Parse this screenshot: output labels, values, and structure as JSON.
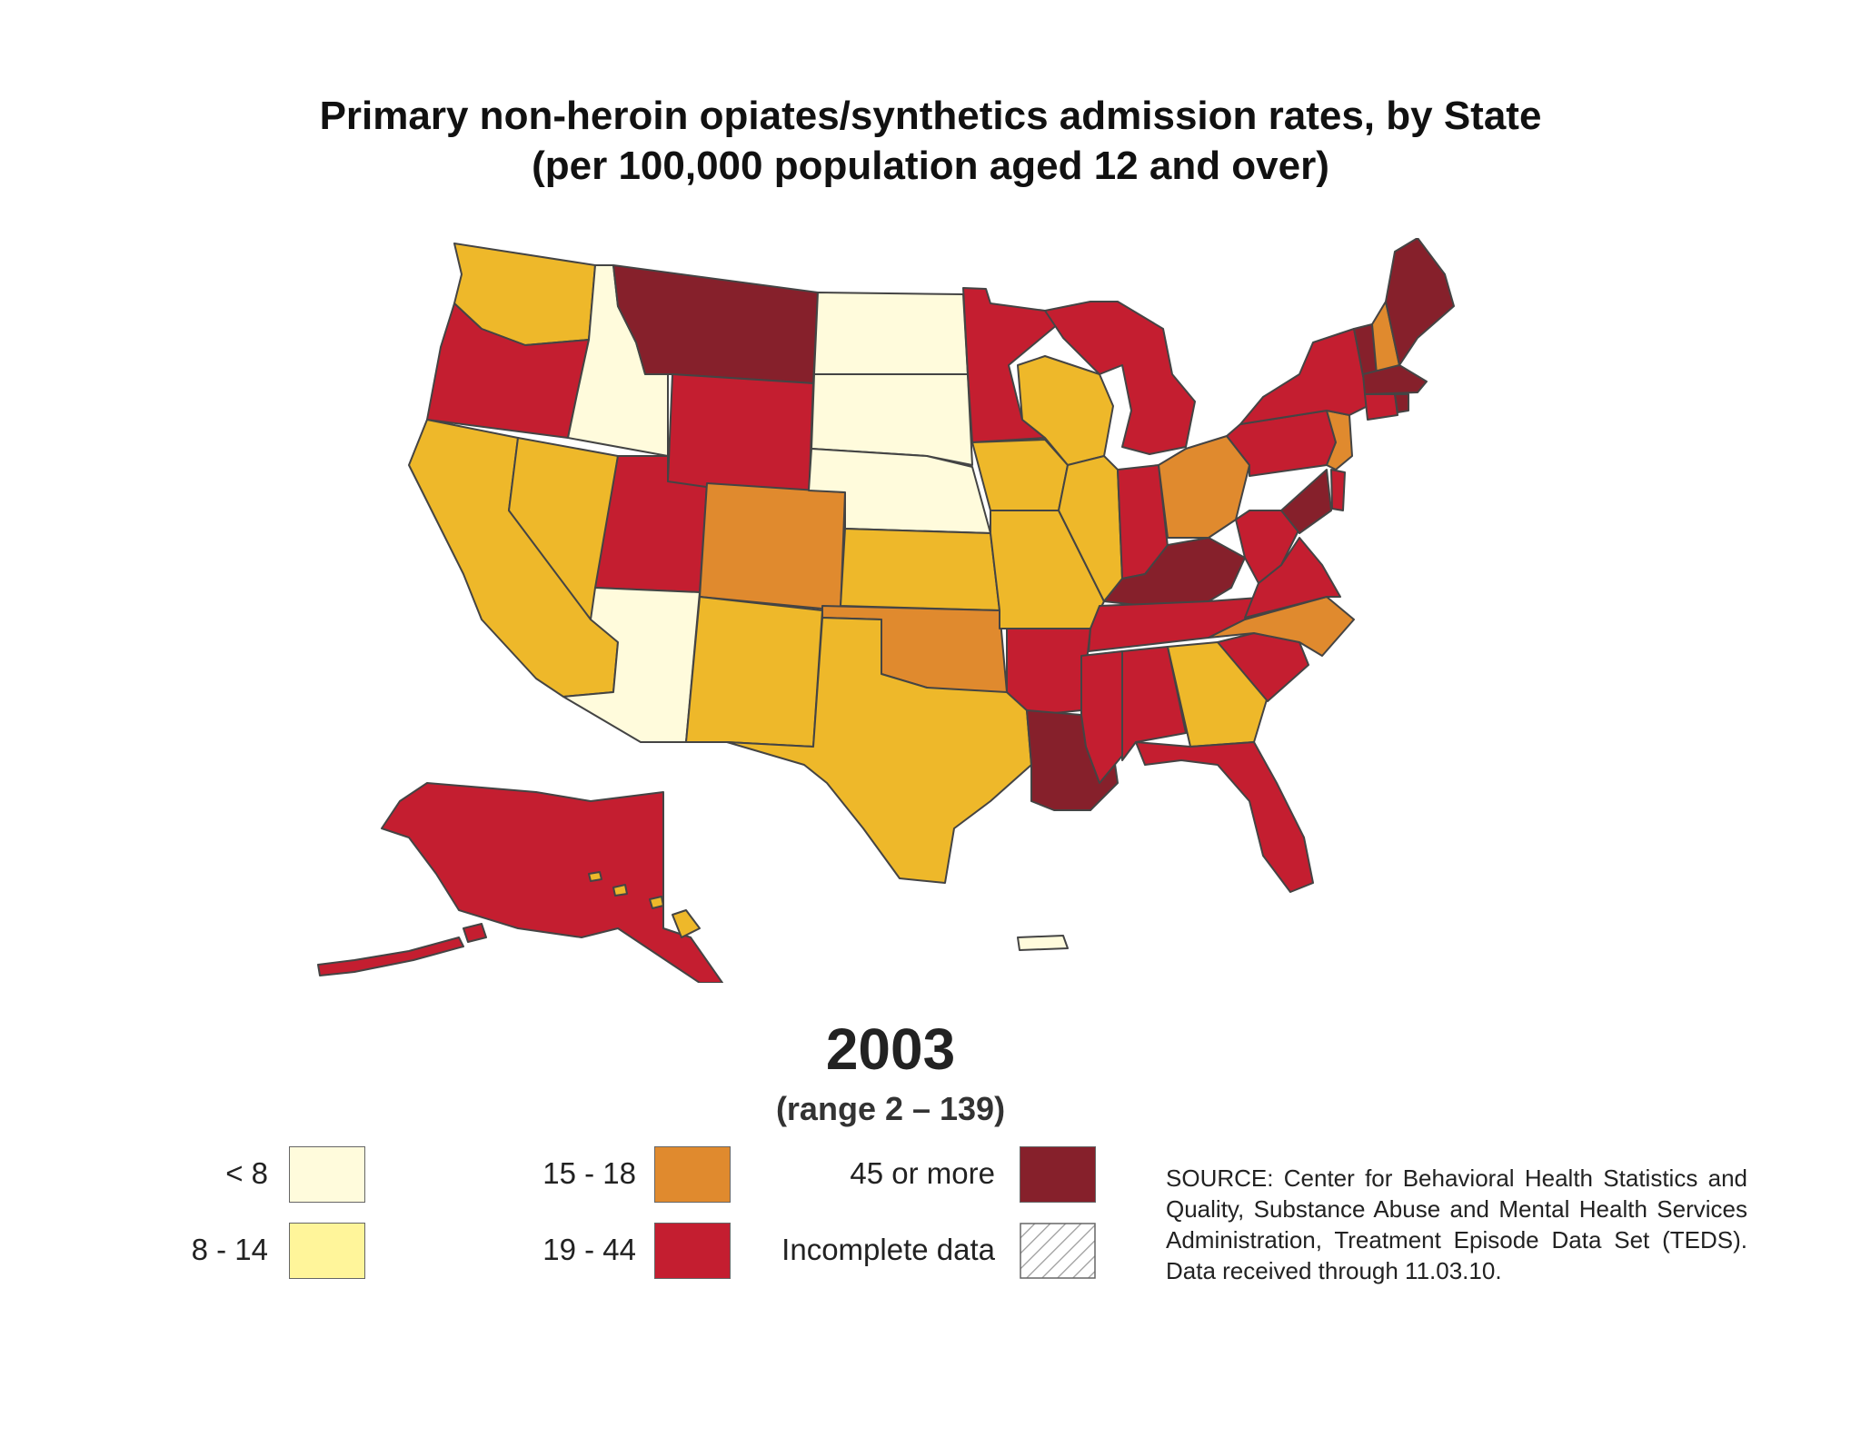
{
  "title_line1": "Primary non-heroin opiates/synthetics admission rates, by State",
  "title_line2": "(per 100,000 population aged 12 and over)",
  "year": "2003",
  "range": "(range 2 – 139)",
  "colors": {
    "lt8": "#fffbdc",
    "r8_14": "#fff59a",
    "r15_18": "#e08a2e",
    "r19_44": "#c41e30",
    "r45plus": "#86202b",
    "incomplete": "#ffffff",
    "r_yellow": "#eeb82a",
    "border": "#444444"
  },
  "legend": {
    "lt8": "< 8",
    "r8_14": "8 - 14",
    "r15_18": "15 - 18",
    "r19_44": "19 - 44",
    "r45plus": "45 or more",
    "incomplete": "Incomplete data"
  },
  "source": "SOURCE: Center for Behavioral Health Statistics and Quality, Substance Abuse and Mental Health Services Administration, Treatment Episode Data Set (TEDS). Data received through 11.03.10."
}
